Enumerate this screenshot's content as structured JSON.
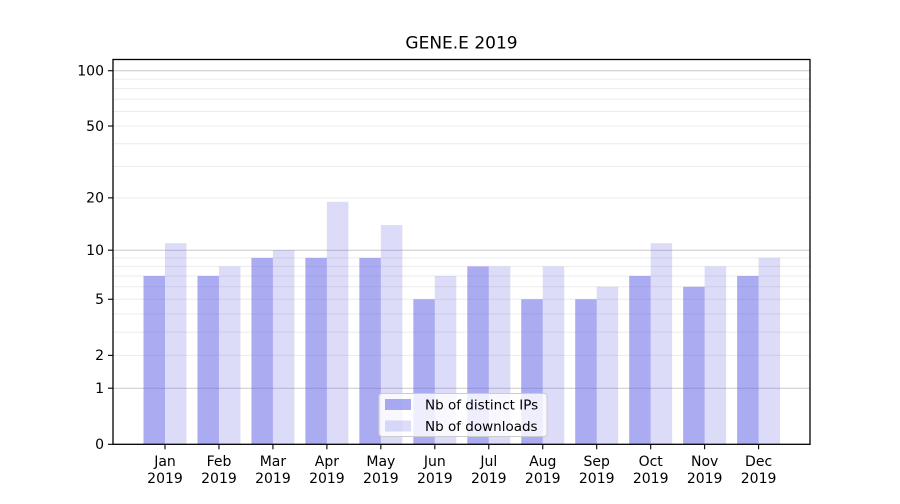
{
  "chart_data": {
    "type": "bar",
    "title": "GENE.E 2019",
    "categories": [
      "Jan",
      "Feb",
      "Mar",
      "Apr",
      "May",
      "Jun",
      "Jul",
      "Aug",
      "Sep",
      "Oct",
      "Nov",
      "Dec"
    ],
    "x_tick_year": "2019",
    "series": [
      {
        "name": "Nb of distinct IPs",
        "color": "#6666e6",
        "alpha": 0.55,
        "values": [
          7,
          7,
          9,
          9,
          9,
          5,
          8,
          5,
          5,
          7,
          6,
          7
        ]
      },
      {
        "name": "Nb of downloads",
        "color": "#6666e6",
        "alpha": 0.23,
        "values": [
          11,
          8,
          10,
          19,
          14,
          7,
          8,
          8,
          6,
          11,
          8,
          9
        ]
      }
    ],
    "yscale": "log1p",
    "ylim": [
      0,
      115
    ],
    "yticks": [
      0,
      1,
      2,
      5,
      10,
      20,
      50,
      100
    ],
    "major_gridlines": [
      1,
      10,
      100
    ],
    "minor_gridlines": [
      2,
      3,
      4,
      5,
      6,
      7,
      8,
      9,
      20,
      30,
      40,
      50,
      60,
      70,
      80,
      90
    ],
    "legend": {
      "labels": [
        "Nb of distinct IPs",
        "Nb of downloads"
      ],
      "position": "lower center"
    },
    "colors": {
      "background": "#ffffff",
      "major_grid": "#c9c9c9",
      "minor_grid": "#ebebeb",
      "axis": "#000000",
      "text": "#000000",
      "legend_border": "#cccccc"
    },
    "grid": "on",
    "xlabel": "",
    "ylabel": ""
  }
}
